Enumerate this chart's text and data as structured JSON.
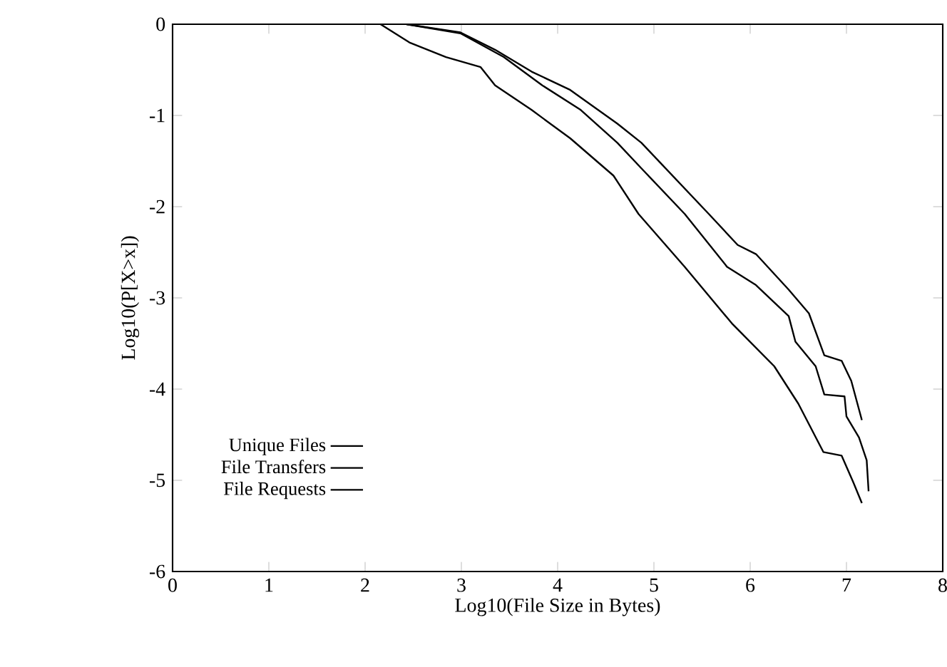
{
  "chart_data": {
    "type": "line",
    "xlabel": "Log10(File Size in Bytes)",
    "ylabel": "Log10(P[X>x])",
    "xlim": [
      0,
      8
    ],
    "ylim": [
      -6,
      0
    ],
    "xticks": [
      0,
      1,
      2,
      3,
      4,
      5,
      6,
      7,
      8
    ],
    "yticks": [
      -6,
      -5,
      -4,
      -3,
      -2,
      -1,
      0
    ],
    "grid": false,
    "legend": "bottom left",
    "marker": "none",
    "series": [
      {
        "name": "Unique Files",
        "color": "#000000",
        "line_style": "solid",
        "x": [
          2.43,
          2.99,
          3.35,
          3.73,
          4.13,
          4.62,
          4.87,
          5.57,
          5.87,
          6.06,
          6.4,
          6.61,
          6.77,
          6.95,
          7.05,
          7.16
        ],
        "values": [
          0,
          -0.09,
          -0.28,
          -0.52,
          -0.72,
          -1.09,
          -1.3,
          -2.08,
          -2.42,
          -2.52,
          -2.91,
          -3.17,
          -3.63,
          -3.69,
          -3.91,
          -4.34
        ]
      },
      {
        "name": "File Transfers",
        "color": "#000000",
        "line_style": "solid",
        "x": [
          2.43,
          2.99,
          3.44,
          3.84,
          4.24,
          4.62,
          4.87,
          5.32,
          5.76,
          6.06,
          6.4,
          6.47,
          6.68,
          6.77,
          6.98,
          7.0,
          7.13,
          7.21,
          7.23
        ],
        "values": [
          0,
          -0.1,
          -0.36,
          -0.67,
          -0.94,
          -1.3,
          -1.58,
          -2.08,
          -2.66,
          -2.86,
          -3.2,
          -3.48,
          -3.75,
          -4.06,
          -4.08,
          -4.3,
          -4.53,
          -4.78,
          -5.12
        ]
      },
      {
        "name": "File Requests",
        "color": "#000000",
        "line_style": "solid",
        "x": [
          2.16,
          2.46,
          2.84,
          3.2,
          3.35,
          3.73,
          4.13,
          4.58,
          4.84,
          5.32,
          5.81,
          6.25,
          6.5,
          6.76,
          6.95,
          7.07,
          7.16
        ],
        "values": [
          0,
          -0.2,
          -0.36,
          -0.47,
          -0.67,
          -0.94,
          -1.25,
          -1.66,
          -2.08,
          -2.66,
          -3.28,
          -3.75,
          -4.16,
          -4.69,
          -4.73,
          -5.02,
          -5.25
        ]
      }
    ]
  }
}
